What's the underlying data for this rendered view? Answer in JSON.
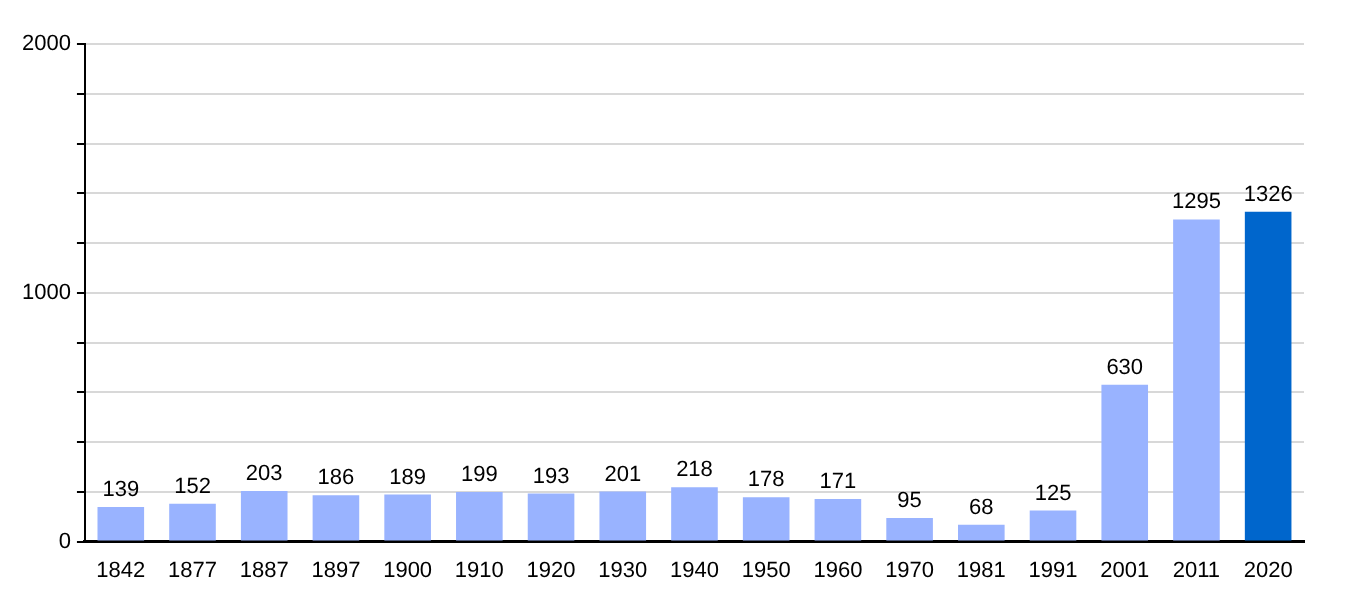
{
  "chart_data": {
    "type": "bar",
    "categories": [
      "1842",
      "1877",
      "1887",
      "1897",
      "1900",
      "1910",
      "1920",
      "1930",
      "1940",
      "1950",
      "1960",
      "1970",
      "1981",
      "1991",
      "2001",
      "2011",
      "2020"
    ],
    "values": [
      139,
      152,
      203,
      186,
      189,
      199,
      193,
      201,
      218,
      178,
      171,
      95,
      68,
      125,
      630,
      1295,
      1326
    ],
    "colors": [
      "#99b3ff",
      "#99b3ff",
      "#99b3ff",
      "#99b3ff",
      "#99b3ff",
      "#99b3ff",
      "#99b3ff",
      "#99b3ff",
      "#99b3ff",
      "#99b3ff",
      "#99b3ff",
      "#99b3ff",
      "#99b3ff",
      "#99b3ff",
      "#99b3ff",
      "#99b3ff",
      "#0066cc"
    ],
    "ylim": [
      0,
      2000
    ],
    "yticks": [
      0,
      {
        "value": 200,
        "label": null
      },
      {
        "value": 400,
        "label": null
      },
      {
        "value": 600,
        "label": null
      },
      {
        "value": 800,
        "label": null
      },
      1000,
      {
        "value": 1200,
        "label": null
      },
      {
        "value": 1400,
        "label": null
      },
      {
        "value": 1600,
        "label": null
      },
      {
        "value": 1800,
        "label": null
      },
      2000
    ],
    "grid": true,
    "data_labels": true
  }
}
